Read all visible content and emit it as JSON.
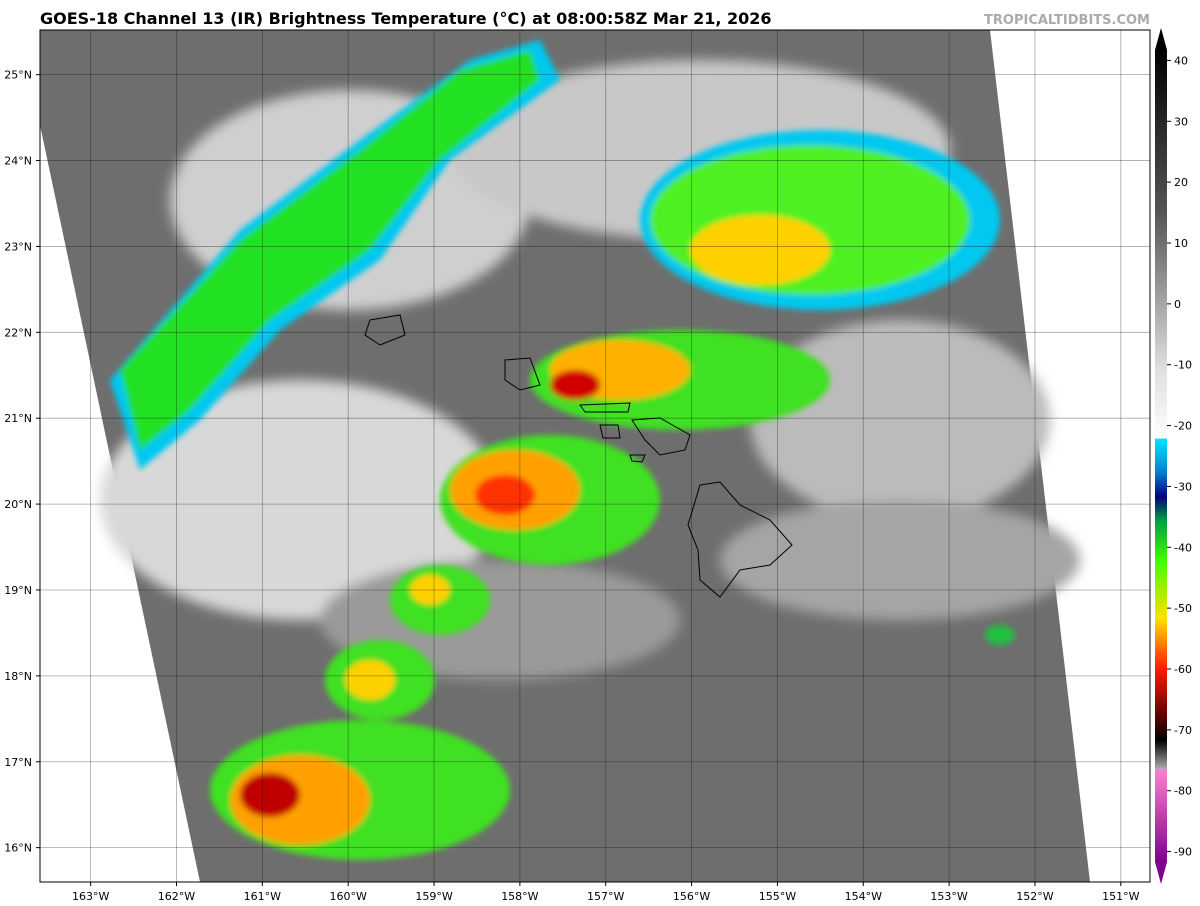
{
  "header": {
    "title": "GOES-18 Channel 13 (IR) Brightness Temperature (°C) at 08:00:58Z Mar 21, 2026",
    "watermark": "TROPICALTIDBITS.COM"
  },
  "map": {
    "lon_range": [
      -163.59,
      -150.66
    ],
    "lat_range": [
      15.6,
      25.52
    ],
    "lat_ticks": [
      {
        "value": 25,
        "label": "25°N"
      },
      {
        "value": 24,
        "label": "24°N"
      },
      {
        "value": 23,
        "label": "23°N"
      },
      {
        "value": 22,
        "label": "22°N"
      },
      {
        "value": 21,
        "label": "21°N"
      },
      {
        "value": 20,
        "label": "20°N"
      },
      {
        "value": 19,
        "label": "19°N"
      },
      {
        "value": 18,
        "label": "18°N"
      },
      {
        "value": 17,
        "label": "17°N"
      },
      {
        "value": 16,
        "label": "16°N"
      }
    ],
    "lon_ticks": [
      {
        "value": -163,
        "label": "163°W"
      },
      {
        "value": -162,
        "label": "162°W"
      },
      {
        "value": -161,
        "label": "161°W"
      },
      {
        "value": -160,
        "label": "160°W"
      },
      {
        "value": -159,
        "label": "159°W"
      },
      {
        "value": -158,
        "label": "158°W"
      },
      {
        "value": -157,
        "label": "157°W"
      },
      {
        "value": -156,
        "label": "156°W"
      },
      {
        "value": -155,
        "label": "155°W"
      },
      {
        "value": -154,
        "label": "154°W"
      },
      {
        "value": -153,
        "label": "153°W"
      },
      {
        "value": -152,
        "label": "152°W"
      },
      {
        "value": -151,
        "label": "151°W"
      }
    ]
  },
  "colorbar": {
    "range": [
      -95,
      45
    ],
    "ticks": [
      40,
      30,
      20,
      10,
      0,
      -10,
      -20,
      -30,
      -40,
      -50,
      -60,
      -70,
      -80,
      -90
    ]
  }
}
